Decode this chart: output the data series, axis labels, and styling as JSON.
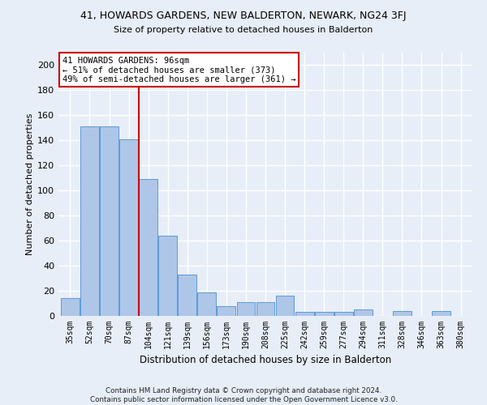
{
  "title1": "41, HOWARDS GARDENS, NEW BALDERTON, NEWARK, NG24 3FJ",
  "title2": "Size of property relative to detached houses in Balderton",
  "xlabel": "Distribution of detached houses by size in Balderton",
  "ylabel": "Number of detached properties",
  "categories": [
    "35sqm",
    "52sqm",
    "70sqm",
    "87sqm",
    "104sqm",
    "121sqm",
    "139sqm",
    "156sqm",
    "173sqm",
    "190sqm",
    "208sqm",
    "225sqm",
    "242sqm",
    "259sqm",
    "277sqm",
    "294sqm",
    "311sqm",
    "328sqm",
    "346sqm",
    "363sqm",
    "380sqm"
  ],
  "values": [
    14,
    151,
    151,
    141,
    109,
    64,
    33,
    19,
    8,
    11,
    11,
    16,
    3,
    3,
    3,
    5,
    0,
    4,
    0,
    4,
    0
  ],
  "bar_color": "#aec6e8",
  "bar_edge_color": "#5b9bd5",
  "annotation_text": "41 HOWARDS GARDENS: 96sqm\n← 51% of detached houses are smaller (373)\n49% of semi-detached houses are larger (361) →",
  "vline_position": 3.5,
  "vline_color": "#cc0000",
  "annotation_box_color": "#ffffff",
  "annotation_box_edge": "#cc0000",
  "ylim": [
    0,
    210
  ],
  "yticks": [
    0,
    20,
    40,
    60,
    80,
    100,
    120,
    140,
    160,
    180,
    200
  ],
  "footnote": "Contains HM Land Registry data © Crown copyright and database right 2024.\nContains public sector information licensed under the Open Government Licence v3.0.",
  "background_color": "#e8eef8",
  "grid_color": "#ffffff"
}
